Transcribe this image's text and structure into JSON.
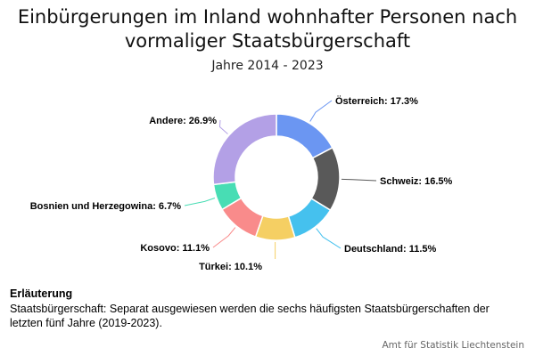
{
  "chart_data": {
    "type": "pie",
    "variant": "donut",
    "title": "Einbürgerungen im Inland wohnhafter Personen nach vormaliger Staatsbürgerschaft",
    "subtitle": "Jahre 2014 - 2023",
    "slices": [
      {
        "name": "Österreich",
        "value": 17.3,
        "label": "Österreich: 17.3%",
        "color": "#6b96f2"
      },
      {
        "name": "Schweiz",
        "value": 16.5,
        "label": "Schweiz: 16.5%",
        "color": "#595959"
      },
      {
        "name": "Deutschland",
        "value": 11.5,
        "label": "Deutschland: 11.5%",
        "color": "#45c1ee"
      },
      {
        "name": "Türkei",
        "value": 10.1,
        "label": "Türkei: 10.1%",
        "color": "#f5cf63"
      },
      {
        "name": "Kosovo",
        "value": 11.1,
        "label": "Kosovo: 11.1%",
        "color": "#f98b8b"
      },
      {
        "name": "Bosnien und Herzegowina",
        "value": 6.7,
        "label": "Bosnien und Herzegowina: 6.7%",
        "color": "#48ddb4"
      },
      {
        "name": "Andere",
        "value": 26.9,
        "label": "Andere: 26.9%",
        "color": "#b3a0e6"
      }
    ],
    "unit": "%"
  },
  "note": {
    "heading": "Erläuterung",
    "text": "Staatsbürgerschaft: Separat ausgewiesen werden die sechs häufigsten Staatsbürgerschaften der letzten fünf Jahre (2019-2023)."
  },
  "source": "Amt für Statistik Liechtenstein"
}
